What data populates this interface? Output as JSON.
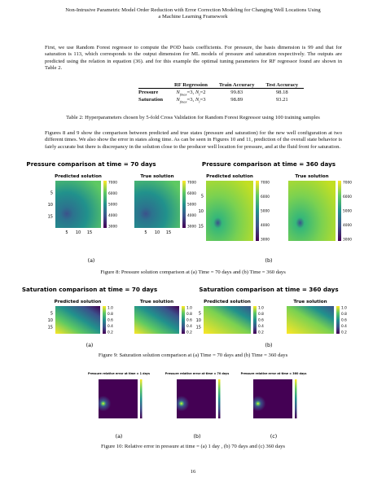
{
  "header": {
    "title_lines": [
      "Non-Intrusive Parametric Model Order Reduction with Error Correction Modeling for Changing Well Locations Using",
      "a Machine Learning Framework"
    ]
  },
  "paragraphs": [
    "First, we use Random Forest regressor to compute the POD basis coefficients. For pressure, the basis dimension is 99 and that for saturation is 113, which corresponds to the output dimension for ML models of pressure and saturation respectively. The outputs are predicted using the relation in equation (36). and for this example the optimal tuning parameters for RF regressor found are shown in Table 2.",
    "Figures 8 and 9 show the comparison between predicted and true states (pressure and saturation) for the new well configuration at two different times. We also show the error in states along time. As can be seen in Figures 10 and 11, prediction of the overall state behavior is fairly accurate but there is discrepancy in the solution close to the producer well location for pressure, and at the fluid front for saturation."
  ],
  "table": {
    "columns": [
      "RF Regression",
      "Train Accuracy",
      "Test Accuracy"
    ],
    "rows": [
      {
        "label": "Pressure",
        "params": [
          [
            "N",
            "fmax",
            "=3, "
          ],
          [
            "N",
            "l",
            "=2"
          ]
        ],
        "train": 99.83,
        "test": 98.18
      },
      {
        "label": "Saturation",
        "params": [
          [
            "N",
            "fmax",
            "=3, "
          ],
          [
            "N",
            "l",
            "=3"
          ]
        ],
        "train": 98.89,
        "test": 93.21
      }
    ],
    "caption": "Table 2: Hyperparameters chosen by 5-fold Cross Validation for Random Forest Regressor using 100 training samples"
  },
  "figure8": {
    "panels": [
      {
        "title": "Pressure comparison at time = 70 days",
        "subplots": [
          "Predicted solution",
          "True solution"
        ],
        "label": "(a)"
      },
      {
        "title": "Pressure comparison at time = 360 days",
        "subplots": [
          "Predicted solution",
          "True solution"
        ],
        "label": "(b)"
      }
    ],
    "axis_ticks": [
      "5",
      "10",
      "15"
    ],
    "colorbar_ticks": [
      "7000",
      "6000",
      "5000",
      "4000",
      "3000"
    ],
    "caption": "Figure 8: Pressure solution comparison at (a) Time = 70 days and (b) Time = 360 days"
  },
  "figure9": {
    "panels": [
      {
        "title": "Saturation comparison at time = 70 days",
        "subplots": [
          "Predicted solution",
          "True solution"
        ],
        "label": "(a)"
      },
      {
        "title": "Saturation comparison at time = 360 days",
        "subplots": [
          "Predicted solution",
          "True solution"
        ],
        "label": "(b)"
      }
    ],
    "axis_ticks": [
      "5",
      "10",
      "15"
    ],
    "colorbar_ticks": [
      "1.0",
      "0.8",
      "0.6",
      "0.4",
      "0.2"
    ],
    "caption": "Figure 9: Saturation solution comparison at (a) Time = 70 days and (b) Time = 360 days"
  },
  "figure10": {
    "panels": [
      {
        "title": "Pressure relative error at time = 1 days",
        "label": "(a)"
      },
      {
        "title": "Pressure relative error at time = 70 days",
        "label": "(b)"
      },
      {
        "title": "Pressure relative error at time = 360 days",
        "label": "(c)"
      }
    ],
    "caption": "Figure 10: Relative error in pressure at time = (a) 1 day , (b) 70 days and (c) 360 days"
  },
  "page_number": "16"
}
